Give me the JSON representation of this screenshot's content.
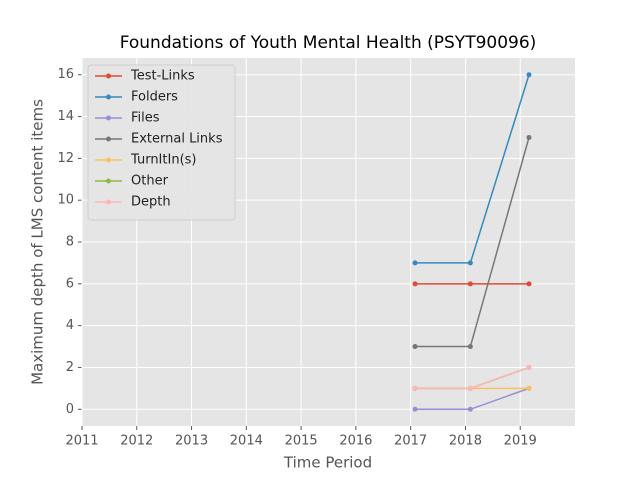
{
  "chart_data": {
    "type": "line",
    "title": "Foundations of Youth Mental Health (PSYT90096)",
    "x_label": "Time Period",
    "y_label": "Maximum depth of LMS content items",
    "x": [
      2017.08,
      2018.09,
      2019.16
    ],
    "series": [
      {
        "name": "Test-Links",
        "color": "#E24A33",
        "values": [
          6,
          6,
          6
        ]
      },
      {
        "name": "Folders",
        "color": "#348ABD",
        "values": [
          7,
          7,
          16
        ]
      },
      {
        "name": "Files",
        "color": "#988ED5",
        "values": [
          0,
          0,
          1
        ]
      },
      {
        "name": "External Links",
        "color": "#777777",
        "values": [
          3,
          3,
          13
        ]
      },
      {
        "name": "TurnItIn(s)",
        "color": "#FBC15E",
        "values": [
          1,
          1,
          1
        ]
      },
      {
        "name": "Other",
        "color": "#8EBA42",
        "values": [
          1,
          1,
          2
        ]
      },
      {
        "name": "Depth",
        "color": "#FFB5B8",
        "values": [
          1,
          1,
          2
        ]
      }
    ],
    "xlim": [
      2011,
      2020
    ],
    "xticks": [
      2011,
      2012,
      2013,
      2014,
      2015,
      2016,
      2017,
      2018,
      2019
    ],
    "ylim": [
      -0.8,
      16.8
    ],
    "yticks": [
      0,
      2,
      4,
      6,
      8,
      10,
      12,
      14,
      16
    ],
    "grid": true,
    "legend": "upper-left"
  }
}
